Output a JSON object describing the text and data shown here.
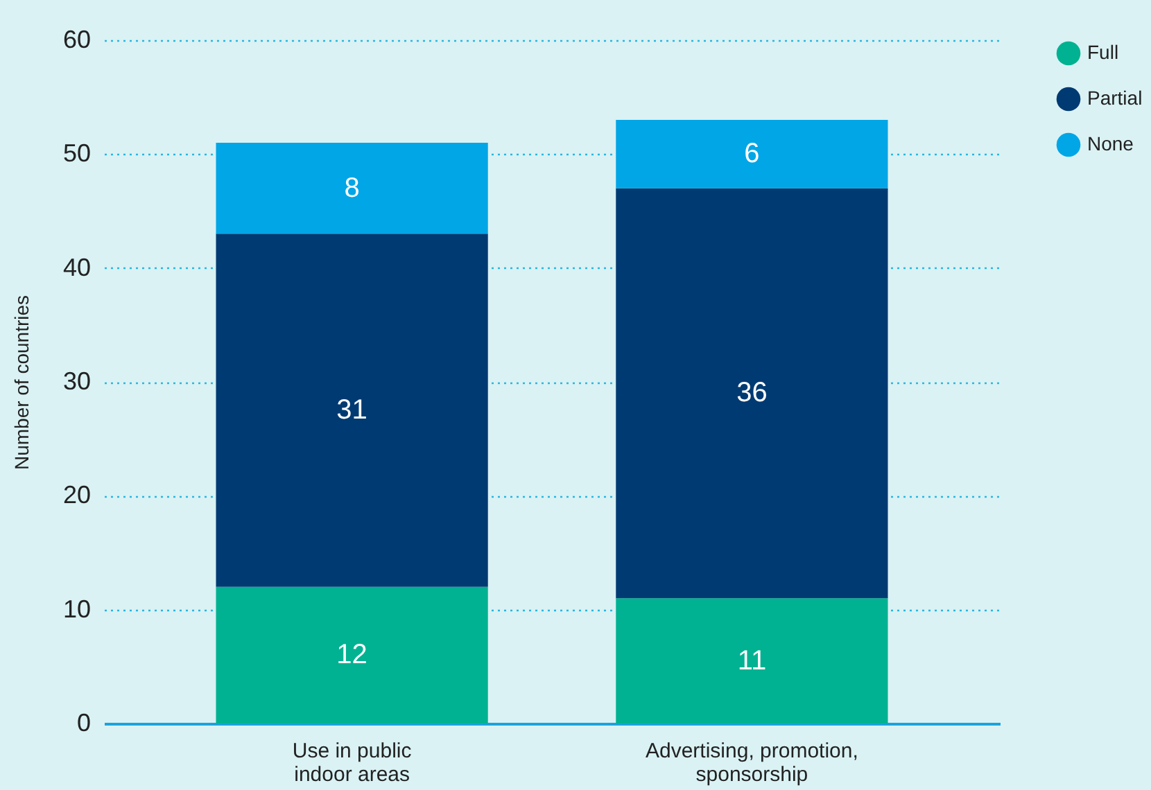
{
  "chart_data": {
    "type": "bar",
    "stacked": true,
    "ylabel": "Number of countries",
    "categories": [
      "Use in public indoor areas",
      "Advertising, promotion, sponsorship"
    ],
    "series": [
      {
        "name": "Full",
        "color": "#00b291",
        "values": [
          12,
          11
        ]
      },
      {
        "name": "Partial",
        "color": "#003a72",
        "values": [
          31,
          36
        ]
      },
      {
        "name": "None",
        "color": "#00a6e6",
        "values": [
          8,
          6
        ]
      }
    ],
    "ylim": [
      0,
      60
    ],
    "yticks": [
      0,
      10,
      20,
      30,
      40,
      50,
      60
    ],
    "grid": "y",
    "legend": "top right",
    "data_labels": true
  }
}
